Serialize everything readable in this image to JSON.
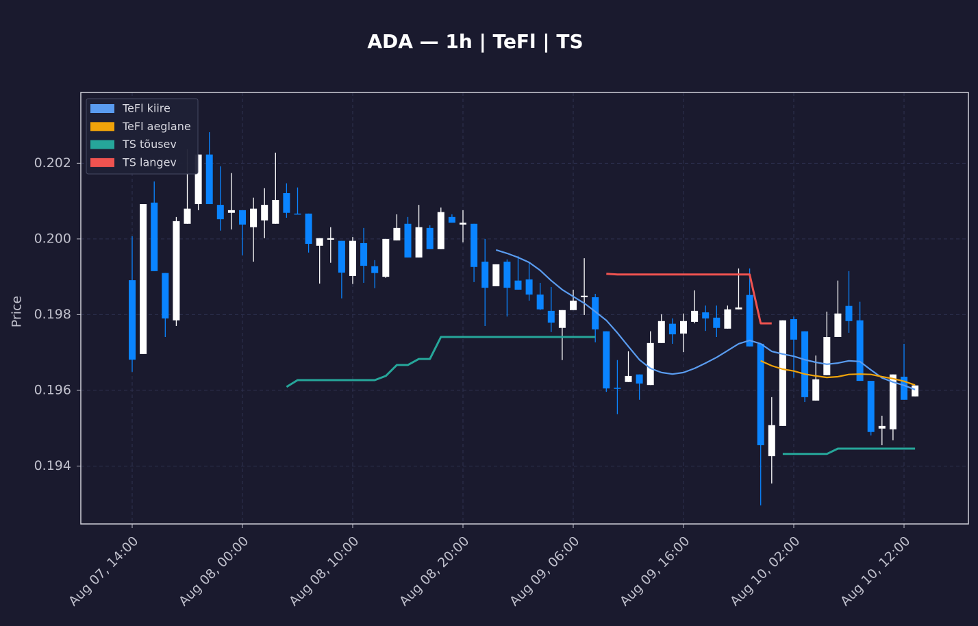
{
  "chart_data": {
    "type": "candlestick",
    "title": "ADA — 1h  |  TeFl  |  TS",
    "ylabel": "Price",
    "x": [
      "Aug 07, 14:00",
      "Aug 07, 15:00",
      "Aug 07, 16:00",
      "Aug 07, 17:00",
      "Aug 07, 18:00",
      "Aug 07, 19:00",
      "Aug 07, 20:00",
      "Aug 07, 21:00",
      "Aug 07, 22:00",
      "Aug 07, 23:00",
      "Aug 08, 00:00",
      "Aug 08, 01:00",
      "Aug 08, 02:00",
      "Aug 08, 03:00",
      "Aug 08, 04:00",
      "Aug 08, 05:00",
      "Aug 08, 06:00",
      "Aug 08, 07:00",
      "Aug 08, 08:00",
      "Aug 08, 09:00",
      "Aug 08, 10:00",
      "Aug 08, 11:00",
      "Aug 08, 12:00",
      "Aug 08, 13:00",
      "Aug 08, 14:00",
      "Aug 08, 15:00",
      "Aug 08, 16:00",
      "Aug 08, 17:00",
      "Aug 08, 18:00",
      "Aug 08, 19:00",
      "Aug 08, 20:00",
      "Aug 08, 21:00",
      "Aug 08, 22:00",
      "Aug 08, 23:00",
      "Aug 09, 00:00",
      "Aug 09, 01:00",
      "Aug 09, 02:00",
      "Aug 09, 03:00",
      "Aug 09, 04:00",
      "Aug 09, 05:00",
      "Aug 09, 06:00",
      "Aug 09, 07:00",
      "Aug 09, 08:00",
      "Aug 09, 09:00",
      "Aug 09, 10:00",
      "Aug 09, 11:00",
      "Aug 09, 12:00",
      "Aug 09, 13:00",
      "Aug 09, 14:00",
      "Aug 09, 15:00",
      "Aug 09, 16:00",
      "Aug 09, 17:00",
      "Aug 09, 18:00",
      "Aug 09, 19:00",
      "Aug 09, 20:00",
      "Aug 09, 21:00",
      "Aug 09, 22:00",
      "Aug 09, 23:00",
      "Aug 10, 00:00",
      "Aug 10, 01:00",
      "Aug 10, 02:00",
      "Aug 10, 03:00",
      "Aug 10, 04:00",
      "Aug 10, 05:00",
      "Aug 10, 06:00",
      "Aug 10, 07:00",
      "Aug 10, 08:00",
      "Aug 10, 09:00",
      "Aug 10, 10:00",
      "Aug 10, 11:00",
      "Aug 10, 12:00",
      "Aug 10, 13:00"
    ],
    "open": [
      0.19891,
      0.19696,
      0.20096,
      0.1991,
      0.19785,
      0.2004,
      0.20092,
      0.20223,
      0.2009,
      0.20069,
      0.20076,
      0.20031,
      0.20049,
      0.2004,
      0.20121,
      0.20067,
      0.20067,
      0.19982,
      0.19998,
      0.19995,
      0.19902,
      0.19989,
      0.19928,
      0.199,
      0.19996,
      0.2004,
      0.19951,
      0.20029,
      0.19973,
      0.20058,
      0.20038,
      0.2004,
      0.1994,
      0.19875,
      0.1994,
      0.1989,
      0.19893,
      0.19853,
      0.1981,
      0.19765,
      0.19812,
      0.19846,
      0.19846,
      0.19756,
      0.19607,
      0.19622,
      0.19642,
      0.19614,
      0.19725,
      0.19776,
      0.1975,
      0.19781,
      0.19806,
      0.19792,
      0.19763,
      0.19814,
      0.19852,
      0.19723,
      0.19426,
      0.19506,
      0.19788,
      0.19756,
      0.19573,
      0.1964,
      0.19741,
      0.19823,
      0.19785,
      0.19625,
      0.19499,
      0.19497,
      0.19636,
      0.19584
    ],
    "high": [
      0.20007,
      0.20092,
      0.20152,
      0.1991,
      0.20058,
      0.20237,
      0.20223,
      0.20282,
      0.20192,
      0.20174,
      0.20076,
      0.20109,
      0.20134,
      0.20228,
      0.20147,
      0.20136,
      0.20067,
      0.20002,
      0.20031,
      0.19995,
      0.20005,
      0.20029,
      0.19944,
      0.2,
      0.20065,
      0.20058,
      0.2009,
      0.20036,
      0.20083,
      0.20065,
      0.20076,
      0.2004,
      0.2,
      0.19933,
      0.19946,
      0.19955,
      0.19938,
      0.19884,
      0.19873,
      0.19812,
      0.19866,
      0.19949,
      0.19855,
      0.19756,
      0.1968,
      0.19703,
      0.19642,
      0.19756,
      0.19801,
      0.1979,
      0.19803,
      0.19864,
      0.19824,
      0.19824,
      0.19824,
      0.19922,
      0.19922,
      0.19723,
      0.19582,
      0.19785,
      0.19795,
      0.19756,
      0.19692,
      0.19808,
      0.1989,
      0.19915,
      0.19834,
      0.19625,
      0.19533,
      0.19642,
      0.19723,
      0.19613
    ],
    "low": [
      0.19649,
      0.19696,
      0.19915,
      0.19741,
      0.1977,
      0.2004,
      0.20076,
      0.20092,
      0.20022,
      0.20025,
      0.19957,
      0.1994,
      0.20002,
      0.2004,
      0.20056,
      0.20065,
      0.19964,
      0.19882,
      0.19937,
      0.19843,
      0.19881,
      0.19884,
      0.1987,
      0.19897,
      0.19996,
      0.19951,
      0.19951,
      0.19973,
      0.19973,
      0.20043,
      0.19991,
      0.19886,
      0.1977,
      0.19875,
      0.19795,
      0.19866,
      0.19837,
      0.19812,
      0.19754,
      0.1968,
      0.19812,
      0.19799,
      0.19727,
      0.19596,
      0.19537,
      0.19622,
      0.19575,
      0.19614,
      0.19725,
      0.19723,
      0.19701,
      0.19777,
      0.19757,
      0.19741,
      0.19763,
      0.19814,
      0.19716,
      0.19296,
      0.19354,
      0.19506,
      0.19633,
      0.19569,
      0.19573,
      0.1964,
      0.19741,
      0.19752,
      0.19625,
      0.19481,
      0.19455,
      0.19468,
      0.19575,
      0.19584
    ],
    "close": [
      0.19681,
      0.20092,
      0.19915,
      0.1979,
      0.20047,
      0.2008,
      0.20223,
      0.20092,
      0.20052,
      0.20076,
      0.20038,
      0.2008,
      0.2009,
      0.20103,
      0.20069,
      0.20065,
      0.19987,
      0.20002,
      0.20002,
      0.19911,
      0.19995,
      0.19929,
      0.1991,
      0.2,
      0.20029,
      0.19951,
      0.20031,
      0.19973,
      0.20071,
      0.20043,
      0.20043,
      0.19926,
      0.19871,
      0.19933,
      0.19871,
      0.19866,
      0.19853,
      0.19814,
      0.19779,
      0.19812,
      0.19837,
      0.1985,
      0.19761,
      0.19605,
      0.19604,
      0.19638,
      0.19618,
      0.19725,
      0.19783,
      0.19748,
      0.19783,
      0.1981,
      0.1979,
      0.19765,
      0.19814,
      0.19819,
      0.19716,
      0.19455,
      0.19508,
      0.19785,
      0.19734,
      0.19582,
      0.19629,
      0.19741,
      0.19803,
      0.19783,
      0.19625,
      0.1949,
      0.19506,
      0.19642,
      0.19575,
      0.19613
    ],
    "up_color": "#ffffff",
    "down_color": "#0a84ff",
    "series": [
      {
        "name": "TeFl kiire",
        "color": "#5a9cf0",
        "values": [
          null,
          null,
          null,
          null,
          null,
          null,
          null,
          null,
          null,
          null,
          null,
          null,
          null,
          null,
          null,
          null,
          null,
          null,
          null,
          null,
          null,
          null,
          null,
          null,
          null,
          null,
          null,
          null,
          null,
          null,
          null,
          null,
          null,
          0.19971,
          0.19962,
          0.19951,
          0.19938,
          0.19917,
          0.1989,
          0.19866,
          0.19848,
          0.1983,
          0.19808,
          0.19785,
          0.19752,
          0.19716,
          0.19681,
          0.19658,
          0.19647,
          0.19643,
          0.19647,
          0.19658,
          0.19672,
          0.19687,
          0.19705,
          0.19723,
          0.19732,
          0.19723,
          0.19703,
          0.19696,
          0.1969,
          0.19681,
          0.19674,
          0.19669,
          0.19672,
          0.19678,
          0.19676,
          0.19654,
          0.19633,
          0.19622,
          0.19613,
          0.19602
        ]
      },
      {
        "name": "TeFl aeglane",
        "color": "#f0a30a",
        "values": [
          null,
          null,
          null,
          null,
          null,
          null,
          null,
          null,
          null,
          null,
          null,
          null,
          null,
          null,
          null,
          null,
          null,
          null,
          null,
          null,
          null,
          null,
          null,
          null,
          null,
          null,
          null,
          null,
          null,
          null,
          null,
          null,
          null,
          null,
          null,
          null,
          null,
          null,
          null,
          null,
          null,
          null,
          null,
          null,
          null,
          null,
          null,
          null,
          null,
          null,
          null,
          null,
          null,
          null,
          null,
          null,
          null,
          0.19678,
          0.19665,
          0.19656,
          0.19651,
          0.19643,
          0.19638,
          0.19634,
          0.19636,
          0.19642,
          0.19643,
          0.19642,
          0.19636,
          0.19631,
          0.19624,
          0.19614
        ]
      },
      {
        "name": "TS tõusev",
        "color": "#26a69a",
        "values": [
          null,
          null,
          null,
          null,
          null,
          null,
          null,
          null,
          null,
          null,
          null,
          null,
          null,
          null,
          0.19609,
          0.19627,
          0.19627,
          0.19627,
          0.19627,
          0.19627,
          0.19627,
          0.19627,
          0.19627,
          0.19638,
          0.19667,
          0.19667,
          0.19683,
          0.19683,
          0.19741,
          0.19741,
          0.19741,
          0.19741,
          0.19741,
          0.19741,
          0.19741,
          0.19741,
          0.19741,
          0.19741,
          0.19741,
          0.19741,
          0.19741,
          0.19741,
          0.19741,
          null,
          null,
          null,
          null,
          null,
          null,
          null,
          null,
          null,
          null,
          null,
          null,
          null,
          null,
          null,
          null,
          0.19432,
          0.19432,
          0.19432,
          0.19432,
          0.19432,
          0.19446,
          0.19446,
          0.19446,
          0.19446,
          0.19446,
          0.19446,
          0.19446,
          0.19446
        ]
      },
      {
        "name": "TS langev",
        "color": "#ef5350",
        "values": [
          null,
          null,
          null,
          null,
          null,
          null,
          null,
          null,
          null,
          null,
          null,
          null,
          null,
          null,
          null,
          null,
          null,
          null,
          null,
          null,
          null,
          null,
          null,
          null,
          null,
          null,
          null,
          null,
          null,
          null,
          null,
          null,
          null,
          null,
          null,
          null,
          null,
          null,
          null,
          null,
          null,
          null,
          null,
          0.19908,
          0.19906,
          0.19906,
          0.19906,
          0.19906,
          0.19906,
          0.19906,
          0.19906,
          0.19906,
          0.19906,
          0.19906,
          0.19906,
          0.19906,
          0.19906,
          0.19777,
          0.19777,
          null,
          null,
          null,
          null,
          null,
          null,
          null,
          null,
          null,
          null,
          null,
          null,
          null
        ]
      }
    ],
    "ylim": [
      0.19247,
      0.20387
    ],
    "yticks": [
      0.194,
      0.196,
      0.198,
      {
        "value": 0.2,
        "label": "0.200"
      },
      0.202
    ],
    "xticks": [
      "Aug 07, 14:00",
      "Aug 08, 00:00",
      "Aug 08, 10:00",
      "Aug 08, 20:00",
      "Aug 09, 06:00",
      "Aug 09, 16:00",
      "Aug 10, 02:00",
      "Aug 10, 12:00"
    ],
    "grid": true,
    "legend": "upper left"
  }
}
